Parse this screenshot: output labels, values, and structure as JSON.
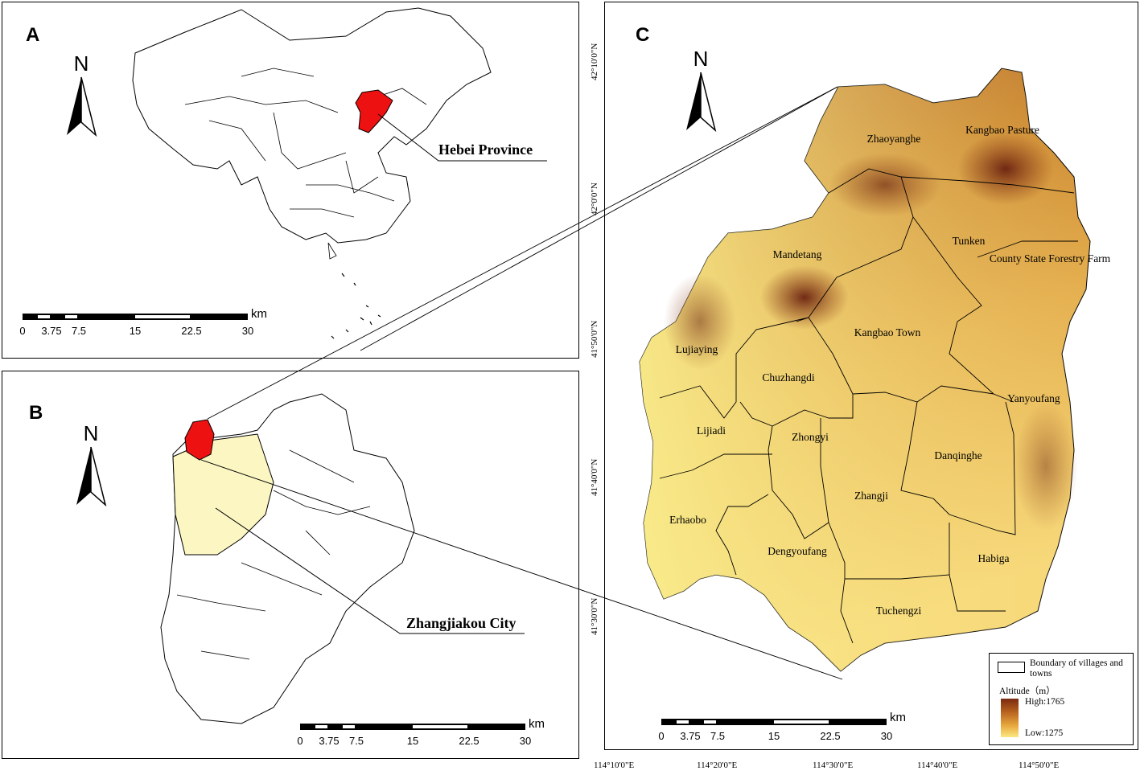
{
  "panels": {
    "a": {
      "label": "A",
      "callout": "Hebei Province"
    },
    "b": {
      "label": "B",
      "callout": "Zhangjiakou City"
    },
    "c": {
      "label": "C"
    }
  },
  "north_label": "N",
  "scale_bar": {
    "unit": "km",
    "ticks": [
      "0",
      "3.75",
      "7.5",
      "15",
      "22.5",
      "30"
    ]
  },
  "latitude_labels": [
    "42°10'0\"N",
    "42°0'0\"N",
    "41°50'0\"N",
    "41°40'0\"N",
    "41°30'0\"N"
  ],
  "longitude_labels": [
    "114°10'0\"E",
    "114°20'0\"E",
    "114°30'0\"E",
    "114°40'0\"E",
    "114°50'0\"E"
  ],
  "towns": [
    "Zhaoyanghe",
    "Kangbao Pasture",
    "Tunken",
    "County State Forestry Farm",
    "Mandetang",
    "Kangbao Town",
    "Lujiaying",
    "Chuzhangdi",
    "Yanyoufang",
    "Lijiadi",
    "Zhongyi",
    "Danqinghe",
    "Zhangji",
    "Erhaobo",
    "Dengyoufang",
    "Habiga",
    "Tuchengzi"
  ],
  "legend": {
    "boundary_label": "Boundary of villages and towns",
    "altitude_title": "Altitude（m）",
    "high": "High:1765",
    "low": "Low:1275"
  },
  "colors": {
    "highlight": "#ee1111",
    "city_fill": "#fbf6c2",
    "alt_high": "#7a2a10",
    "alt_low": "#fbe883"
  }
}
